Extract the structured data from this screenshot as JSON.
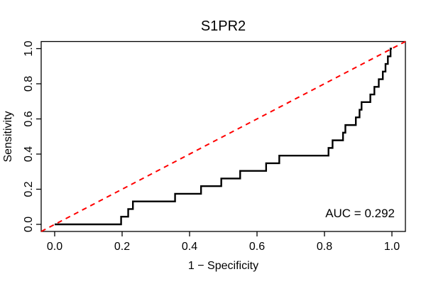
{
  "figure": {
    "background": "#FFFFFF",
    "frame_color": "#000000"
  },
  "chart_data": {
    "type": "line",
    "subtype": "roc-step-curve",
    "title": "S1PR2",
    "xlabel": "1 − Specificity",
    "ylabel": "Sensitivity",
    "xlim": [
      0,
      1
    ],
    "ylim": [
      0,
      1
    ],
    "x_tick_values": [
      0.0,
      0.2,
      0.4,
      0.6,
      0.8,
      1.0
    ],
    "x_tick_labels": [
      "0.0",
      "0.2",
      "0.4",
      "0.6",
      "0.8",
      "1.0"
    ],
    "y_tick_values": [
      0.0,
      0.2,
      0.4,
      0.6,
      0.8,
      1.0
    ],
    "y_tick_labels": [
      "0.0",
      "0.2",
      "0.4",
      "0.6",
      "0.8",
      "1.0"
    ],
    "grid": false,
    "legend": "none",
    "auc": 0.292,
    "annotation": {
      "text": "AUC = 0.292",
      "align": "right"
    },
    "series": [
      {
        "name": "ROC curve",
        "type": "step",
        "color": "#000000",
        "line_width": 2,
        "x": [
          0,
          0.197,
          0.218,
          0.232,
          0.357,
          0.434,
          0.494,
          0.55,
          0.627,
          0.666,
          0.812,
          0.824,
          0.855,
          0.862,
          0.893,
          0.904,
          0.91,
          0.936,
          0.948,
          0.961,
          0.973,
          0.981,
          0.988,
          0.996,
          1.0
        ],
        "y": [
          0,
          0.0435,
          0.087,
          0.1304,
          0.1739,
          0.2174,
          0.2609,
          0.3043,
          0.3478,
          0.3913,
          0.4348,
          0.4783,
          0.5217,
          0.5652,
          0.6087,
          0.6522,
          0.6957,
          0.7391,
          0.7826,
          0.8261,
          0.8696,
          0.913,
          0.9565,
          1.0,
          1.0
        ]
      },
      {
        "name": "Chance diagonal",
        "type": "line",
        "color": "#FF0000",
        "line_style": "dashed",
        "line_width": 2,
        "x": [
          0,
          1
        ],
        "y": [
          0,
          1
        ]
      }
    ]
  }
}
